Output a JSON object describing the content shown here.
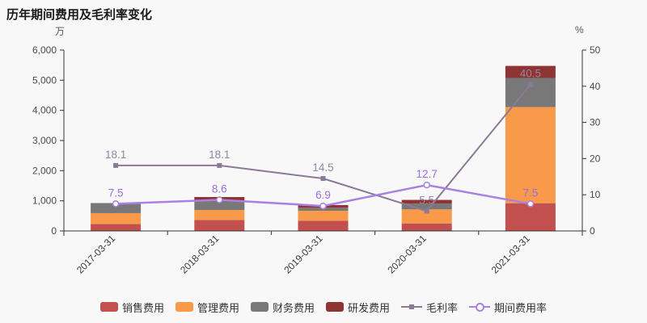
{
  "title": "历年期间费用及毛利率变化",
  "left_axis_unit": "万",
  "right_axis_unit": "%",
  "colors": {
    "background": "#f8f8f8",
    "axis": "#333333",
    "sales_expense": "#c2504e",
    "admin_expense": "#f89a49",
    "finance_expense": "#787878",
    "rd_expense": "#8e3432",
    "gross_margin_line": "#8a7a96",
    "gross_margin_label": "#9186a4",
    "expense_ratio_line": "#aa80e2",
    "expense_ratio_label": "#9d6ede"
  },
  "chart_data": {
    "type": "bar",
    "subtype": "stacked-bar-with-lines",
    "title": "历年期间费用及毛利率变化",
    "categories": [
      "2017-03-31",
      "2018-03-31",
      "2019-03-31",
      "2020-03-31",
      "2021-03-31"
    ],
    "left_axis": {
      "unit": "万",
      "min": 0,
      "max": 6000,
      "tick_labels": [
        "0",
        "1,000",
        "2,000",
        "3,000",
        "4,000",
        "5,000",
        "6,000"
      ]
    },
    "right_axis": {
      "unit": "%",
      "min": 0,
      "max": 50,
      "tick_labels": [
        "0",
        "10",
        "20",
        "30",
        "40",
        "50"
      ]
    },
    "grid": false,
    "legend_position": "bottom",
    "bar_series": [
      {
        "name": "销售费用",
        "stack": true,
        "color": "#c2504e",
        "values": [
          230,
          365,
          340,
          250,
          920
        ]
      },
      {
        "name": "管理费用",
        "stack": true,
        "color": "#f89a49",
        "values": [
          360,
          330,
          330,
          465,
          3190
        ]
      },
      {
        "name": "财务费用",
        "stack": true,
        "color": "#787878",
        "values": [
          335,
          315,
          100,
          190,
          965
        ]
      },
      {
        "name": "研发费用",
        "stack": true,
        "color": "#8e3432",
        "values": [
          0,
          115,
          90,
          125,
          400
        ]
      }
    ],
    "line_series": [
      {
        "name": "毛利率",
        "axis": "right",
        "marker": "square",
        "color": "#8a7a96",
        "label_color": "#9186a4",
        "values": [
          18.1,
          18.1,
          14.5,
          5.5,
          40.5
        ]
      },
      {
        "name": "期间费用率",
        "axis": "right",
        "marker": "hollow-circle",
        "color": "#aa80e2",
        "label_color": "#9d6ede",
        "values": [
          7.5,
          8.6,
          6.9,
          12.7,
          7.5
        ]
      }
    ]
  },
  "legend": {
    "items": [
      {
        "label": "销售费用",
        "type": "bar",
        "color": "#c2504e"
      },
      {
        "label": "管理费用",
        "type": "bar",
        "color": "#f89a49"
      },
      {
        "label": "财务费用",
        "type": "bar",
        "color": "#787878"
      },
      {
        "label": "研发费用",
        "type": "bar",
        "color": "#8e3432"
      },
      {
        "label": "毛利率",
        "type": "line-square",
        "color": "#8a7a96"
      },
      {
        "label": "期间费用率",
        "type": "line-circle",
        "color": "#aa80e2"
      }
    ]
  }
}
